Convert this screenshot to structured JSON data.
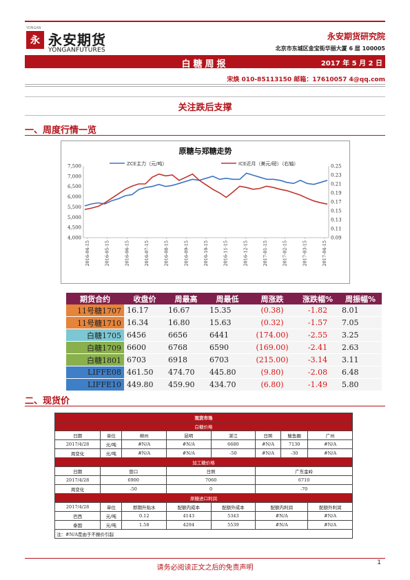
{
  "header": {
    "logo_small": "YONGAN",
    "logo_cn": "永安期货",
    "logo_en": "YONGANFUTURES",
    "logo_mark": "永",
    "institute": "永安期货研究院",
    "address": "北京市东城区金宝街华丽大厦 6 层  100005",
    "report_title": "白糖周报",
    "date": "2017 年 5 月 2 日",
    "author": "宋焕  010-85113150  邮箱：17610057 4@qq.com"
  },
  "headline": "关注跌后支撑",
  "section1": "一、周度行情一览",
  "section2": "二、现货价",
  "chart_data": {
    "type": "line",
    "title": "原糖与郑糖走势",
    "series": [
      {
        "name": "ZCE主力（元/吨）",
        "axis": "left",
        "color": "#3b73c0",
        "values": [
          5550,
          5650,
          5700,
          5650,
          5800,
          5900,
          6050,
          6100,
          6350,
          6450,
          6500,
          6600,
          6500,
          6550,
          6650,
          6750,
          6850,
          6800,
          6900,
          7000,
          6850,
          6900,
          6850,
          6850,
          7150,
          7050,
          6950,
          6850,
          6850,
          6800,
          6700,
          6650,
          6800,
          6650,
          6600,
          6700,
          6800
        ]
      },
      {
        "name": "ICE近月（美元/磅）（右轴）",
        "axis": "right",
        "color": "#c0322b",
        "values": [
          0.153,
          0.156,
          0.16,
          0.168,
          0.178,
          0.188,
          0.198,
          0.205,
          0.21,
          0.21,
          0.225,
          0.232,
          0.228,
          0.23,
          0.218,
          0.225,
          0.232,
          0.218,
          0.208,
          0.198,
          0.19,
          0.18,
          0.192,
          0.205,
          0.202,
          0.198,
          0.2,
          0.205,
          0.202,
          0.198,
          0.195,
          0.19,
          0.185,
          0.178,
          0.172,
          0.168,
          0.165
        ]
      }
    ],
    "x_ticks": [
      "2016-04-15",
      "2016-05-15",
      "2016-06-15",
      "2016-07-15",
      "2016-08-15",
      "2016-09-15",
      "2016-10-15",
      "2016-11-15",
      "2016-12-15",
      "2017-01-15",
      "2017-02-15",
      "2017-03-15",
      "2017-04-15"
    ],
    "y_left_ticks": [
      "7,500",
      "7,000",
      "6,500",
      "6,000",
      "5,500",
      "5,000",
      "4,500",
      "4,000"
    ],
    "y_right_ticks": [
      "0.25",
      "0.23",
      "0.21",
      "0.19",
      "0.17",
      "0.15",
      "0.13",
      "0.11",
      "0.09"
    ],
    "ylim_left": [
      4000,
      7500
    ],
    "ylim_right": [
      0.09,
      0.25
    ],
    "legend_position": "top"
  },
  "futures_table": {
    "headers": [
      "期货合约",
      "收盘价",
      "周最高",
      "周最低",
      "周涨跌",
      "涨跌幅%",
      "周振幅%"
    ],
    "rows": [
      {
        "name": "11号糖1707",
        "close": "16.17",
        "high": "16.67",
        "low": "15.35",
        "chg": "(0.38)",
        "pct": "-1.82",
        "amp": "8.01",
        "color": "#e5843a"
      },
      {
        "name": "11号糖1710",
        "close": "16.34",
        "high": "16.80",
        "low": "15.63",
        "chg": "(0.32)",
        "pct": "-1.57",
        "amp": "7.05",
        "color": "#e5843a"
      },
      {
        "name": "白糖1705",
        "close": "6456",
        "high": "6656",
        "low": "6441",
        "chg": "(174.00)",
        "pct": "-2.55",
        "amp": "3.25",
        "color": "#7cc7d3"
      },
      {
        "name": "白糖1709",
        "close": "6600",
        "high": "6768",
        "low": "6590",
        "chg": "(169.00)",
        "pct": "-2.41",
        "amp": "2.63",
        "color": "#8ab04d"
      },
      {
        "name": "白糖1801",
        "close": "6703",
        "high": "6918",
        "low": "6703",
        "chg": "(215.00)",
        "pct": "-3.14",
        "amp": "3.11",
        "color": "#8ab04d"
      },
      {
        "name": "LIFFE08",
        "close": "461.50",
        "high": "474.70",
        "low": "445.80",
        "chg": "(9.80)",
        "pct": "-2.08",
        "amp": "6.48",
        "color": "#3f7fc7"
      },
      {
        "name": "LIFFE10",
        "close": "449.80",
        "high": "459.90",
        "low": "434.70",
        "chg": "(6.80)",
        "pct": "-1.49",
        "amp": "5.80",
        "color": "#3f7fc7"
      }
    ]
  },
  "spot": {
    "title": "现货市场",
    "sub1": "白糖价格",
    "row1_head": [
      "日期",
      "单位",
      "柳州",
      "昆明",
      "湛江",
      "日照",
      "鲅鱼圈",
      "广州"
    ],
    "row1_a": [
      "2017/4/28",
      "元/吨",
      "#N/A",
      "#N/A",
      "6680",
      "#N/A",
      "7130",
      "#N/A"
    ],
    "row1_b": [
      "周变化",
      "元/吨",
      "#N/A",
      "#N/A",
      "-50",
      "#N/A",
      "-30",
      "#N/A"
    ],
    "sub2": "加工糖价格",
    "row2_head": [
      "日期",
      "营口",
      "日照",
      "广东金岭"
    ],
    "row2_a": [
      "2017/4/28",
      "6900",
      "7060",
      "6710"
    ],
    "row2_b": [
      "周变化",
      "-50",
      "0",
      "-70"
    ],
    "sub3": "原糖进口利润",
    "row3_head": [
      "2017/4/28",
      "单位",
      "即期升贴水",
      "配额内成本",
      "配额外成本",
      "配额内利润",
      "配额外利润"
    ],
    "row3_a": [
      "巴西",
      "元/吨",
      "0.12",
      "4143",
      "5343",
      "#N/A",
      "#N/A"
    ],
    "row3_b": [
      "泰国",
      "元/吨",
      "1.58",
      "4294",
      "5539",
      "#N/A",
      "#N/A"
    ],
    "note": "注：#N/A是由于不报价引起"
  },
  "footer": "请务必阅读正文之后的免责声明",
  "page": "1"
}
